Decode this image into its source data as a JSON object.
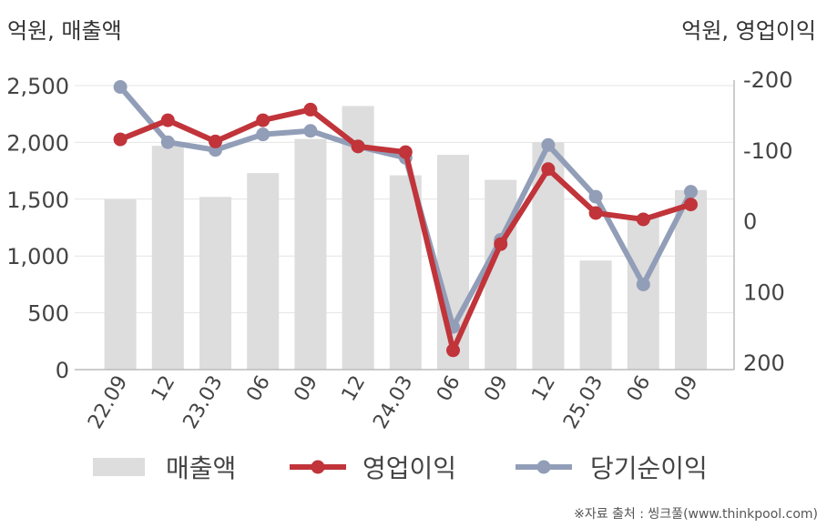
{
  "left_unit": "억원, 매출액",
  "right_unit": "억원, 영업이익",
  "source": "※자료 출처 : 씽크풀(www.thinkpool.com)",
  "colors": {
    "revenue": "#dddddd",
    "operating_profit": "#c0343a",
    "net_income": "#929eb8",
    "grid": "#e4e4e4",
    "axis": "#bbbbbb",
    "text": "#444444"
  },
  "chart_data": {
    "type": "bar",
    "categories": [
      "22.09",
      "12",
      "23.03",
      "06",
      "09",
      "12",
      "24.03",
      "06",
      "09",
      "12",
      "25.03",
      "06",
      "09"
    ],
    "y_left": {
      "ylim": [
        0,
        2500
      ],
      "ticks": [
        "0",
        "500",
        "1,000",
        "1,500",
        "2,000",
        "2,500"
      ]
    },
    "y_right": {
      "ylim": [
        -200,
        200
      ],
      "ticks": [
        "-200",
        "-100",
        "0",
        "100",
        "200"
      ]
    },
    "grid": true,
    "legend_position": "bottom",
    "series": [
      {
        "name": "매출액",
        "type": "bar",
        "axis": "left",
        "values": [
          1500,
          1970,
          1520,
          1730,
          2030,
          2320,
          1710,
          1890,
          1670,
          2000,
          960,
          1360,
          1580
        ]
      },
      {
        "name": "영업이익",
        "type": "line",
        "axis": "right",
        "values": [
          115,
          142,
          112,
          142,
          157,
          105,
          97,
          -183,
          -33,
          73,
          11,
          2,
          23
        ]
      },
      {
        "name": "당기순이익",
        "type": "line",
        "axis": "right",
        "values": [
          189,
          111,
          100,
          122,
          127,
          105,
          89,
          -150,
          -27,
          107,
          34,
          -90,
          41
        ]
      }
    ]
  }
}
